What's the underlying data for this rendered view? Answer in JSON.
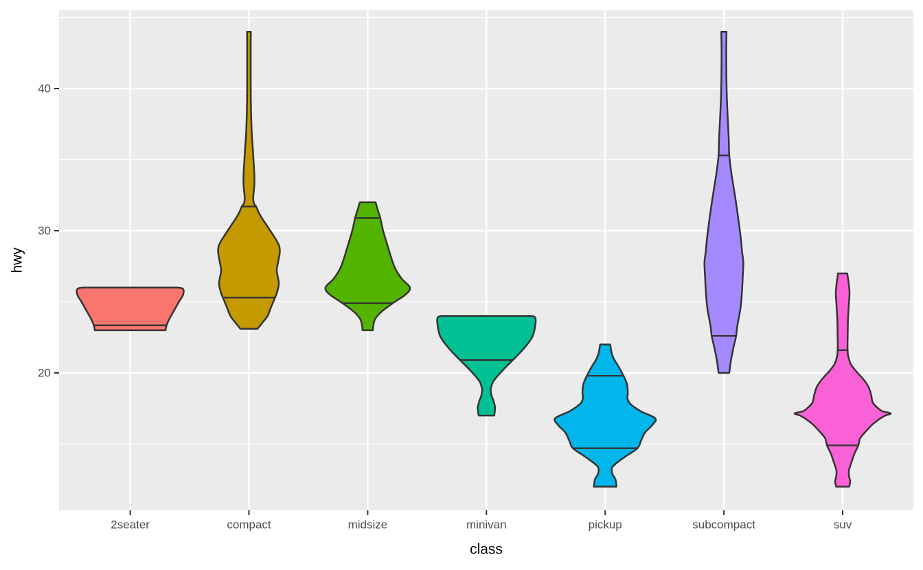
{
  "chart_data": {
    "type": "violin",
    "title": "",
    "xlabel": "class",
    "ylabel": "hwy",
    "x_categories": [
      "2seater",
      "compact",
      "midsize",
      "minivan",
      "pickup",
      "subcompact",
      "suv"
    ],
    "y_axis": {
      "major_ticks": [
        20,
        30,
        40
      ],
      "major_tick_labels": [
        "20",
        "30",
        "40"
      ],
      "minor_gridlines": [
        15,
        25,
        35,
        45
      ],
      "range": [
        10.4,
        45.6
      ]
    },
    "legend": "none",
    "grid": "on",
    "series": [
      {
        "class": "2seater",
        "fill": "#F8766D",
        "hwy_min": 23,
        "hwy_max": 26,
        "quantile_lines": [
          23.35
        ],
        "shape": [
          [
            26.0,
            70
          ],
          [
            25.9,
            77
          ],
          [
            25.5,
            77
          ],
          [
            25.0,
            71
          ],
          [
            24.4,
            64
          ],
          [
            23.8,
            57
          ],
          [
            23.35,
            53
          ],
          [
            23.0,
            51.5
          ]
        ]
      },
      {
        "class": "compact",
        "fill": "#C49A00",
        "hwy_min": 23,
        "hwy_max": 44,
        "quantile_lines": [
          31.7,
          25.3
        ],
        "shape": [
          [
            44.0,
            2.8
          ],
          [
            43.0,
            2.6
          ],
          [
            41.0,
            2.6
          ],
          [
            39.0,
            2.8
          ],
          [
            37.0,
            4.0
          ],
          [
            35.5,
            6.0
          ],
          [
            34.0,
            7.8
          ],
          [
            33.2,
            7.8
          ],
          [
            32.3,
            6.2
          ],
          [
            31.9,
            7.5
          ],
          [
            31.7,
            10.5
          ],
          [
            31.3,
            14
          ],
          [
            30.8,
            20
          ],
          [
            30.3,
            27
          ],
          [
            29.2,
            41.5
          ],
          [
            28.6,
            45
          ],
          [
            27.8,
            42.5
          ],
          [
            27.2,
            40.5
          ],
          [
            26.3,
            43.5
          ],
          [
            25.6,
            40.5
          ],
          [
            25.3,
            38
          ],
          [
            24.6,
            32
          ],
          [
            24.0,
            27
          ],
          [
            23.5,
            19
          ],
          [
            23.1,
            12.5
          ]
        ]
      },
      {
        "class": "midsize",
        "fill": "#53B400",
        "hwy_min": 23,
        "hwy_max": 32,
        "quantile_lines": [
          30.9,
          24.9
        ],
        "shape": [
          [
            32.0,
            11.5
          ],
          [
            31.5,
            14.5
          ],
          [
            30.9,
            18.3
          ],
          [
            30.0,
            22.5
          ],
          [
            28.7,
            30.5
          ],
          [
            27.4,
            39.5
          ],
          [
            26.6,
            50
          ],
          [
            26.0,
            61.5
          ],
          [
            25.5,
            55
          ],
          [
            24.9,
            36.5
          ],
          [
            24.3,
            20
          ],
          [
            23.8,
            11
          ],
          [
            23.4,
            8.5
          ],
          [
            23.0,
            7.5
          ]
        ]
      },
      {
        "class": "minivan",
        "fill": "#00C094",
        "hwy_min": 17,
        "hwy_max": 24,
        "quantile_lines": [
          20.9
        ],
        "shape": [
          [
            24.0,
            66
          ],
          [
            23.9,
            71
          ],
          [
            23.5,
            71.5
          ],
          [
            22.6,
            67.5
          ],
          [
            21.8,
            56
          ],
          [
            21.0,
            40.5
          ],
          [
            20.4,
            28
          ],
          [
            19.9,
            18.3
          ],
          [
            19.4,
            10
          ],
          [
            19.0,
            7
          ],
          [
            18.8,
            6.2
          ],
          [
            18.4,
            7.5
          ],
          [
            18.0,
            10.5
          ],
          [
            17.6,
            12.5
          ],
          [
            17.2,
            12
          ],
          [
            17.0,
            11.3
          ]
        ]
      },
      {
        "class": "pickup",
        "fill": "#00B6EB",
        "hwy_min": 12,
        "hwy_max": 22,
        "quantile_lines": [
          19.8,
          14.7
        ],
        "shape": [
          [
            22.0,
            7.3
          ],
          [
            21.4,
            9.5
          ],
          [
            21.0,
            12.5
          ],
          [
            20.4,
            20
          ],
          [
            19.8,
            26.7
          ],
          [
            19.2,
            31.8
          ],
          [
            18.6,
            33
          ],
          [
            18.2,
            32.5
          ],
          [
            17.8,
            37
          ],
          [
            17.3,
            52
          ],
          [
            16.8,
            73
          ],
          [
            16.3,
            68
          ],
          [
            15.8,
            58
          ],
          [
            15.2,
            52
          ],
          [
            14.7,
            47
          ],
          [
            14.1,
            29
          ],
          [
            13.6,
            15
          ],
          [
            13.3,
            9.8
          ],
          [
            12.9,
            10.5
          ],
          [
            12.5,
            15
          ],
          [
            12.0,
            16.5
          ]
        ]
      },
      {
        "class": "subcompact",
        "fill": "#A58AFF",
        "hwy_min": 20,
        "hwy_max": 44,
        "quantile_lines": [
          35.3,
          22.6
        ],
        "shape": [
          [
            44.0,
            3.8
          ],
          [
            42.5,
            3.4
          ],
          [
            41.0,
            3.6
          ],
          [
            39.5,
            4.2
          ],
          [
            38.0,
            5.5
          ],
          [
            36.5,
            7.0
          ],
          [
            35.3,
            7.8
          ],
          [
            34.0,
            11
          ],
          [
            32.5,
            16
          ],
          [
            31.0,
            20.5
          ],
          [
            29.5,
            24.5
          ],
          [
            28.5,
            26.5
          ],
          [
            27.8,
            28.3
          ],
          [
            26.8,
            27.5
          ],
          [
            25.5,
            26
          ],
          [
            24.5,
            24
          ],
          [
            23.3,
            19.5
          ],
          [
            22.6,
            17.8
          ],
          [
            21.8,
            14
          ],
          [
            20.8,
            10
          ],
          [
            20.0,
            7.8
          ]
        ]
      },
      {
        "class": "suv",
        "fill": "#FB61D7",
        "hwy_min": 12,
        "hwy_max": 27,
        "quantile_lines": [
          21.6,
          14.9
        ],
        "shape": [
          [
            27.0,
            6.7
          ],
          [
            26.3,
            8.8
          ],
          [
            25.6,
            10
          ],
          [
            24.8,
            9
          ],
          [
            23.8,
            7.8
          ],
          [
            22.8,
            7.4
          ],
          [
            21.9,
            7.1
          ],
          [
            21.6,
            7.3
          ],
          [
            21.2,
            8
          ],
          [
            20.6,
            12
          ],
          [
            20.1,
            20
          ],
          [
            19.5,
            31
          ],
          [
            19.0,
            37.8
          ],
          [
            18.4,
            41.7
          ],
          [
            17.9,
            44
          ],
          [
            17.5,
            52
          ],
          [
            17.3,
            58
          ],
          [
            17.15,
            70
          ],
          [
            17.0,
            62
          ],
          [
            16.8,
            55
          ],
          [
            16.4,
            44
          ],
          [
            15.9,
            34
          ],
          [
            15.4,
            25.5
          ],
          [
            14.9,
            22.8
          ],
          [
            14.3,
            17
          ],
          [
            13.7,
            12.8
          ],
          [
            13.1,
            9
          ],
          [
            12.7,
            9.5
          ],
          [
            12.35,
            11
          ],
          [
            12.0,
            9.5
          ]
        ]
      }
    ]
  },
  "theme": {
    "figure_bg": "#FFFFFF",
    "panel_bg": "#EBEBEB",
    "grid_color": "#FFFFFF",
    "outline_color": "#333333",
    "tick_mark_color": "#333333",
    "tick_label_color": "#4D4D4D",
    "axis_title_color": "#000000"
  }
}
